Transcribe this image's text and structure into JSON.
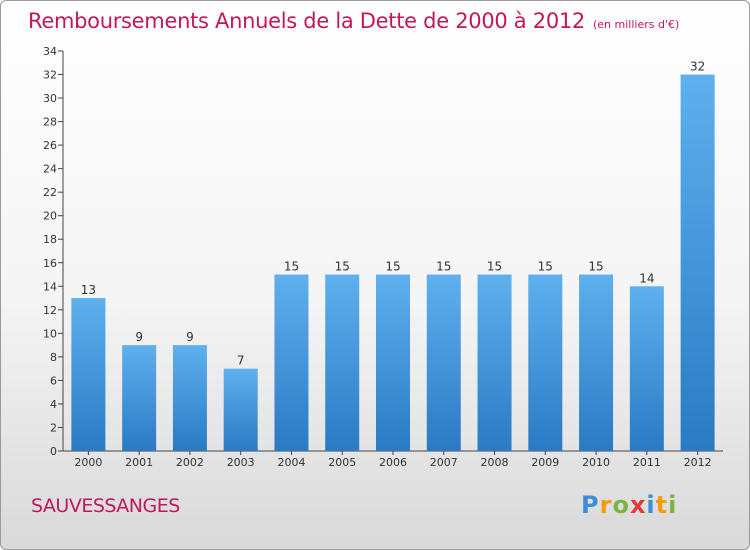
{
  "title": "Remboursements Annuels de la Dette de 2000 à 2012",
  "subtitle": "(en milliers d'€)",
  "commune": "SAUVESSANGES",
  "logo_text": "Proxiti",
  "colors": {
    "bar": "#3a8fd8",
    "bar_light": "#5fb0ee",
    "title": "#c2185b"
  },
  "chart_data": {
    "type": "bar",
    "title": "Remboursements Annuels de la Dette de 2000 à 2012",
    "subtitle": "(en milliers d'€)",
    "categories": [
      "2000",
      "2001",
      "2002",
      "2003",
      "2004",
      "2005",
      "2006",
      "2007",
      "2008",
      "2009",
      "2010",
      "2011",
      "2012"
    ],
    "values": [
      13,
      9,
      9,
      7,
      15,
      15,
      15,
      15,
      15,
      15,
      15,
      14,
      32
    ],
    "ylim": [
      0,
      34
    ],
    "yticks": [
      0,
      2,
      4,
      6,
      8,
      10,
      12,
      14,
      16,
      18,
      20,
      22,
      24,
      26,
      28,
      30,
      32,
      34
    ],
    "xlabel": "",
    "ylabel": "",
    "grid": false,
    "legend": "none"
  }
}
